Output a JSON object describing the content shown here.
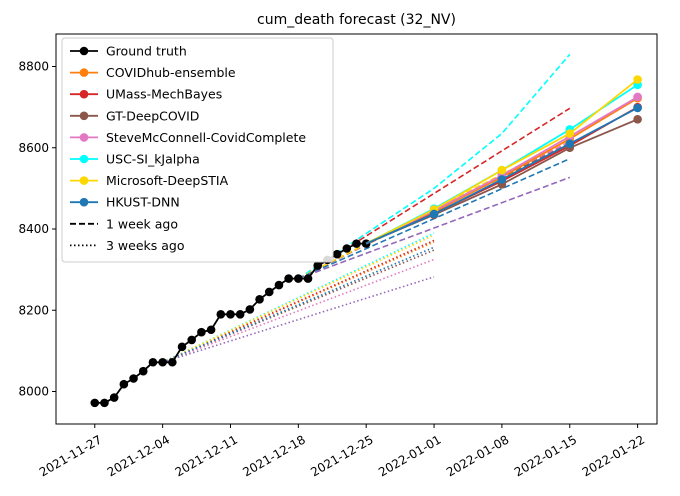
{
  "chart_data": {
    "type": "line",
    "title": "cum_death forecast (32_NV)",
    "xlabel": "",
    "ylabel": "",
    "x_range": [
      "2021-11-23",
      "2022-01-24"
    ],
    "ylim": [
      7920,
      8880
    ],
    "x_ticks": [
      "2021-11-27",
      "2021-12-04",
      "2021-12-11",
      "2021-12-18",
      "2021-12-25",
      "2022-01-01",
      "2022-01-08",
      "2022-01-15",
      "2022-01-22"
    ],
    "y_ticks": [
      8000,
      8200,
      8400,
      8600,
      8800
    ],
    "grid": false,
    "legend_position": "top-left",
    "ground_truth": {
      "name": "Ground truth",
      "color": "#000000",
      "dates": [
        "2021-11-27",
        "2021-11-28",
        "2021-11-29",
        "2021-11-30",
        "2021-12-01",
        "2021-12-02",
        "2021-12-03",
        "2021-12-04",
        "2021-12-05",
        "2021-12-06",
        "2021-12-07",
        "2021-12-08",
        "2021-12-09",
        "2021-12-10",
        "2021-12-11",
        "2021-12-12",
        "2021-12-13",
        "2021-12-14",
        "2021-12-15",
        "2021-12-16",
        "2021-12-17",
        "2021-12-18",
        "2021-12-19",
        "2021-12-20",
        "2021-12-21",
        "2021-12-22",
        "2021-12-23",
        "2021-12-24",
        "2021-12-25"
      ],
      "values": [
        7972,
        7972,
        7985,
        8018,
        8032,
        8050,
        8072,
        8072,
        8072,
        8110,
        8127,
        8146,
        8152,
        8190,
        8190,
        8190,
        8202,
        8227,
        8245,
        8262,
        8278,
        8278,
        8278,
        8310,
        8324,
        8338,
        8352,
        8364,
        8364
      ]
    },
    "series": [
      {
        "name": "COVIDhub-ensemble",
        "color": "#ff7f0e",
        "current": {
          "dates": [
            "2021-12-25",
            "2022-01-01",
            "2022-01-08",
            "2022-01-15",
            "2022-01-22"
          ],
          "values": [
            8364,
            8442,
            8528,
            8622,
            8722
          ]
        },
        "one_week_ago": {
          "dates": [
            "2021-12-18",
            "2022-01-15"
          ],
          "values": [
            8278,
            8610
          ]
        },
        "three_weeks_ago": {
          "dates": [
            "2021-12-04",
            "2022-01-01"
          ],
          "values": [
            8072,
            8368
          ]
        }
      },
      {
        "name": "UMass-MechBayes",
        "color": "#d62728",
        "current": {
          "dates": [
            "2021-12-25",
            "2022-01-01",
            "2022-01-08",
            "2022-01-15",
            "2022-01-22"
          ],
          "values": [
            8364,
            8438,
            8518,
            8605,
            8700
          ]
        },
        "one_week_ago": {
          "dates": [
            "2021-12-18",
            "2022-01-15"
          ],
          "values": [
            8278,
            8697
          ]
        },
        "three_weeks_ago": {
          "dates": [
            "2021-12-04",
            "2022-01-01"
          ],
          "values": [
            8072,
            8372
          ]
        }
      },
      {
        "name": "GT-DeepCOVID",
        "color": "#8c564b",
        "current": {
          "dates": [
            "2021-12-25",
            "2022-01-01",
            "2022-01-08",
            "2022-01-15",
            "2022-01-22"
          ],
          "values": [
            8364,
            8435,
            8510,
            8600,
            8670
          ]
        },
        "one_week_ago": {
          "dates": [
            "2021-12-18",
            "2022-01-15"
          ],
          "values": [
            8278,
            8612
          ]
        },
        "three_weeks_ago": {
          "dates": [
            "2021-12-04",
            "2022-01-01"
          ],
          "values": [
            8072,
            8348
          ]
        }
      },
      {
        "name": "SteveMcConnell-CovidComplete",
        "color": "#e377c2",
        "current": {
          "dates": [
            "2021-12-25",
            "2022-01-01",
            "2022-01-08",
            "2022-01-15",
            "2022-01-22"
          ],
          "values": [
            8364,
            8445,
            8532,
            8628,
            8725
          ]
        },
        "one_week_ago": {
          "dates": [
            "2021-12-18",
            "2022-01-15"
          ],
          "values": [
            8278,
            8615
          ]
        },
        "three_weeks_ago": {
          "dates": [
            "2021-12-04",
            "2022-01-01"
          ],
          "values": [
            8072,
            8325
          ]
        }
      },
      {
        "name": "USC-SI_kJalpha",
        "color": "#00ffff",
        "current": {
          "dates": [
            "2021-12-25",
            "2022-01-01",
            "2022-01-08",
            "2022-01-15",
            "2022-01-22"
          ],
          "values": [
            8364,
            8450,
            8545,
            8645,
            8755
          ]
        },
        "one_week_ago": {
          "dates": [
            "2021-12-18",
            "2022-01-01",
            "2022-01-08",
            "2022-01-15"
          ],
          "values": [
            8278,
            8500,
            8635,
            8830
          ]
        },
        "three_weeks_ago": {
          "dates": [
            "2021-12-04",
            "2022-01-01"
          ],
          "values": [
            8072,
            8390
          ]
        }
      },
      {
        "name": "Microsoft-DeepSTIA",
        "color": "#ffd700",
        "current": {
          "dates": [
            "2021-12-25",
            "2022-01-01",
            "2022-01-08",
            "2022-01-15",
            "2022-01-22"
          ],
          "values": [
            8364,
            8448,
            8545,
            8635,
            8768
          ]
        },
        "one_week_ago": {
          "dates": [
            "2021-12-18",
            "2022-01-15"
          ],
          "values": [
            8278,
            8620
          ]
        },
        "three_weeks_ago": {
          "dates": [
            "2021-12-04",
            "2022-01-01"
          ],
          "values": [
            8072,
            8385
          ]
        }
      },
      {
        "name": "HKUST-DNN",
        "color": "#1f77b4",
        "current": {
          "dates": [
            "2021-12-25",
            "2022-01-01",
            "2022-01-08",
            "2022-01-15",
            "2022-01-22"
          ],
          "values": [
            8364,
            8437,
            8522,
            8610,
            8698
          ]
        },
        "one_week_ago": {
          "dates": [
            "2021-12-18",
            "2022-01-15"
          ],
          "values": [
            8278,
            8573
          ]
        },
        "three_weeks_ago": {
          "dates": [
            "2021-12-04",
            "2022-01-01"
          ],
          "values": [
            8072,
            8355
          ]
        }
      },
      {
        "name": "",
        "color": "#9467bd",
        "current": null,
        "one_week_ago": {
          "dates": [
            "2021-12-18",
            "2022-01-15"
          ],
          "values": [
            8278,
            8527
          ]
        },
        "three_weeks_ago": {
          "dates": [
            "2021-12-04",
            "2022-01-01"
          ],
          "values": [
            8072,
            8282
          ]
        }
      }
    ],
    "legend_items": [
      {
        "label": "Ground truth",
        "color": "#000000",
        "style": "solid",
        "marker": true
      },
      {
        "label": "COVIDhub-ensemble",
        "color": "#ff7f0e",
        "style": "solid",
        "marker": true
      },
      {
        "label": "UMass-MechBayes",
        "color": "#d62728",
        "style": "solid",
        "marker": true
      },
      {
        "label": "GT-DeepCOVID",
        "color": "#8c564b",
        "style": "solid",
        "marker": true
      },
      {
        "label": "SteveMcConnell-CovidComplete",
        "color": "#e377c2",
        "style": "solid",
        "marker": true
      },
      {
        "label": "USC-SI_kJalpha",
        "color": "#00ffff",
        "style": "solid",
        "marker": true
      },
      {
        "label": "Microsoft-DeepSTIA",
        "color": "#ffd700",
        "style": "solid",
        "marker": true
      },
      {
        "label": "HKUST-DNN",
        "color": "#1f77b4",
        "style": "solid",
        "marker": true
      },
      {
        "label": "1 week ago",
        "color": "#000000",
        "style": "dashed",
        "marker": false
      },
      {
        "label": "3 weeks ago",
        "color": "#000000",
        "style": "dotted",
        "marker": false
      }
    ]
  }
}
